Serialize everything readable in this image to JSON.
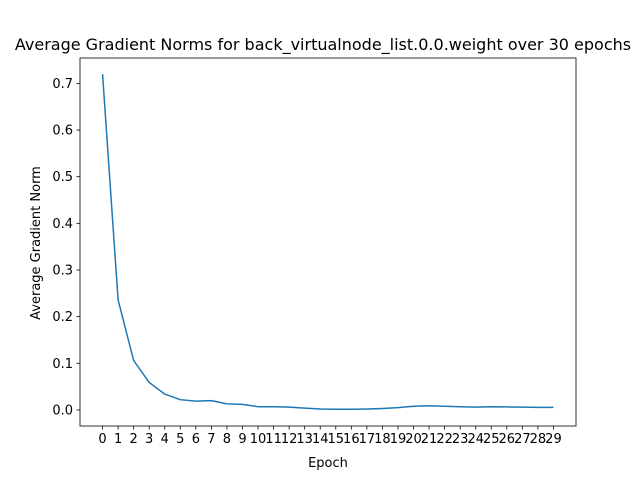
{
  "chart_data": {
    "type": "line",
    "title": "Average Gradient Norms for back_virtualnode_list.0.0.weight over 30 epochs",
    "xlabel": "Epoch",
    "ylabel": "Average Gradient Norm",
    "x": [
      0,
      1,
      2,
      3,
      4,
      5,
      6,
      7,
      8,
      9,
      10,
      11,
      12,
      13,
      14,
      15,
      16,
      17,
      18,
      19,
      20,
      21,
      22,
      23,
      24,
      25,
      26,
      27,
      28,
      29
    ],
    "x_tick_labels": [
      "0",
      "1",
      "2",
      "3",
      "4",
      "5",
      "6",
      "7",
      "8",
      "9",
      "10",
      "11",
      "12",
      "13",
      "14",
      "15",
      "16",
      "17",
      "18",
      "19",
      "20",
      "21",
      "22",
      "23",
      "24",
      "25",
      "26",
      "27",
      "28",
      "29"
    ],
    "series": [
      {
        "values": [
          0.72,
          0.236,
          0.106,
          0.059,
          0.034,
          0.022,
          0.019,
          0.02,
          0.013,
          0.012,
          0.007,
          0.007,
          0.006,
          0.004,
          0.002,
          0.0015,
          0.0015,
          0.002,
          0.003,
          0.005,
          0.008,
          0.009,
          0.008,
          0.007,
          0.006,
          0.007,
          0.0065,
          0.006,
          0.0055,
          0.0055
        ],
        "color": "#1f77b4"
      }
    ],
    "xlim": [
      -1.45,
      30.45
    ],
    "ylim": [
      -0.0344,
      0.7544
    ],
    "y_ticks": [
      0.0,
      0.1,
      0.2,
      0.3,
      0.4,
      0.5,
      0.6,
      0.7
    ],
    "y_tick_labels": [
      "0.0",
      "0.1",
      "0.2",
      "0.3",
      "0.4",
      "0.5",
      "0.6",
      "0.7"
    ],
    "grid": false,
    "legend": "none"
  }
}
